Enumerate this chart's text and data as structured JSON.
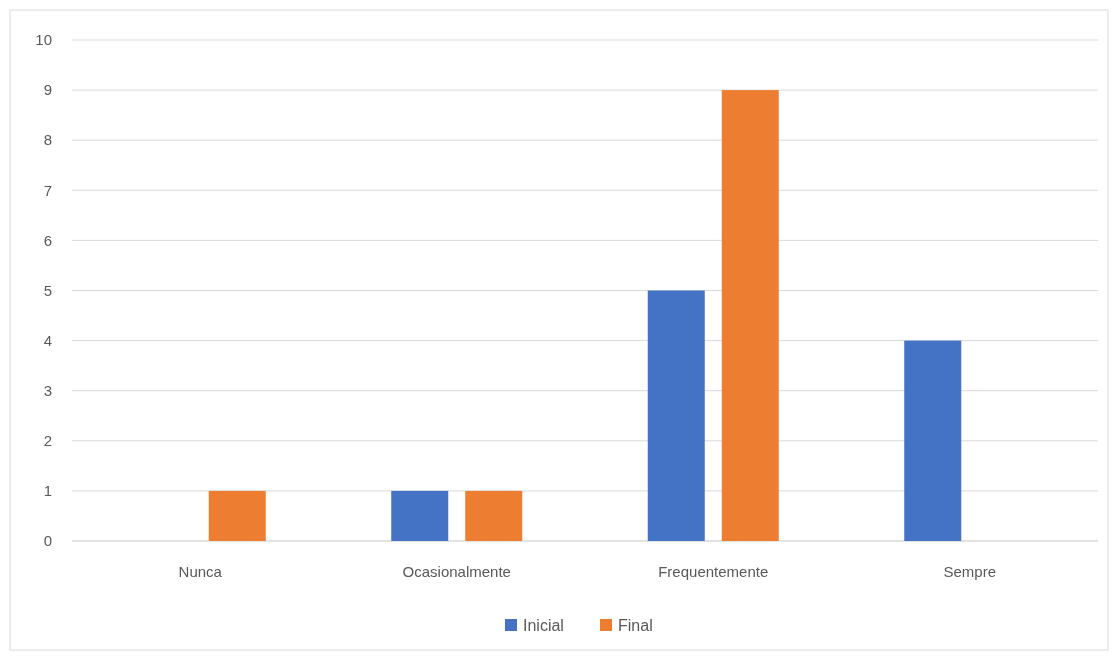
{
  "chart_data": {
    "type": "bar",
    "categories": [
      "Nunca",
      "Ocasionalmente",
      "Frequentemente",
      "Sempre"
    ],
    "series": [
      {
        "name": "Inicial",
        "color": "#4472c4",
        "values": [
          0,
          1,
          5,
          4
        ]
      },
      {
        "name": "Final",
        "color": "#ed7d31",
        "values": [
          1,
          1,
          9,
          0
        ]
      }
    ],
    "ylim": [
      0,
      10
    ],
    "yticks": [
      0,
      1,
      2,
      3,
      4,
      5,
      6,
      7,
      8,
      9,
      10
    ],
    "grid": "y",
    "legend": "bottom"
  }
}
